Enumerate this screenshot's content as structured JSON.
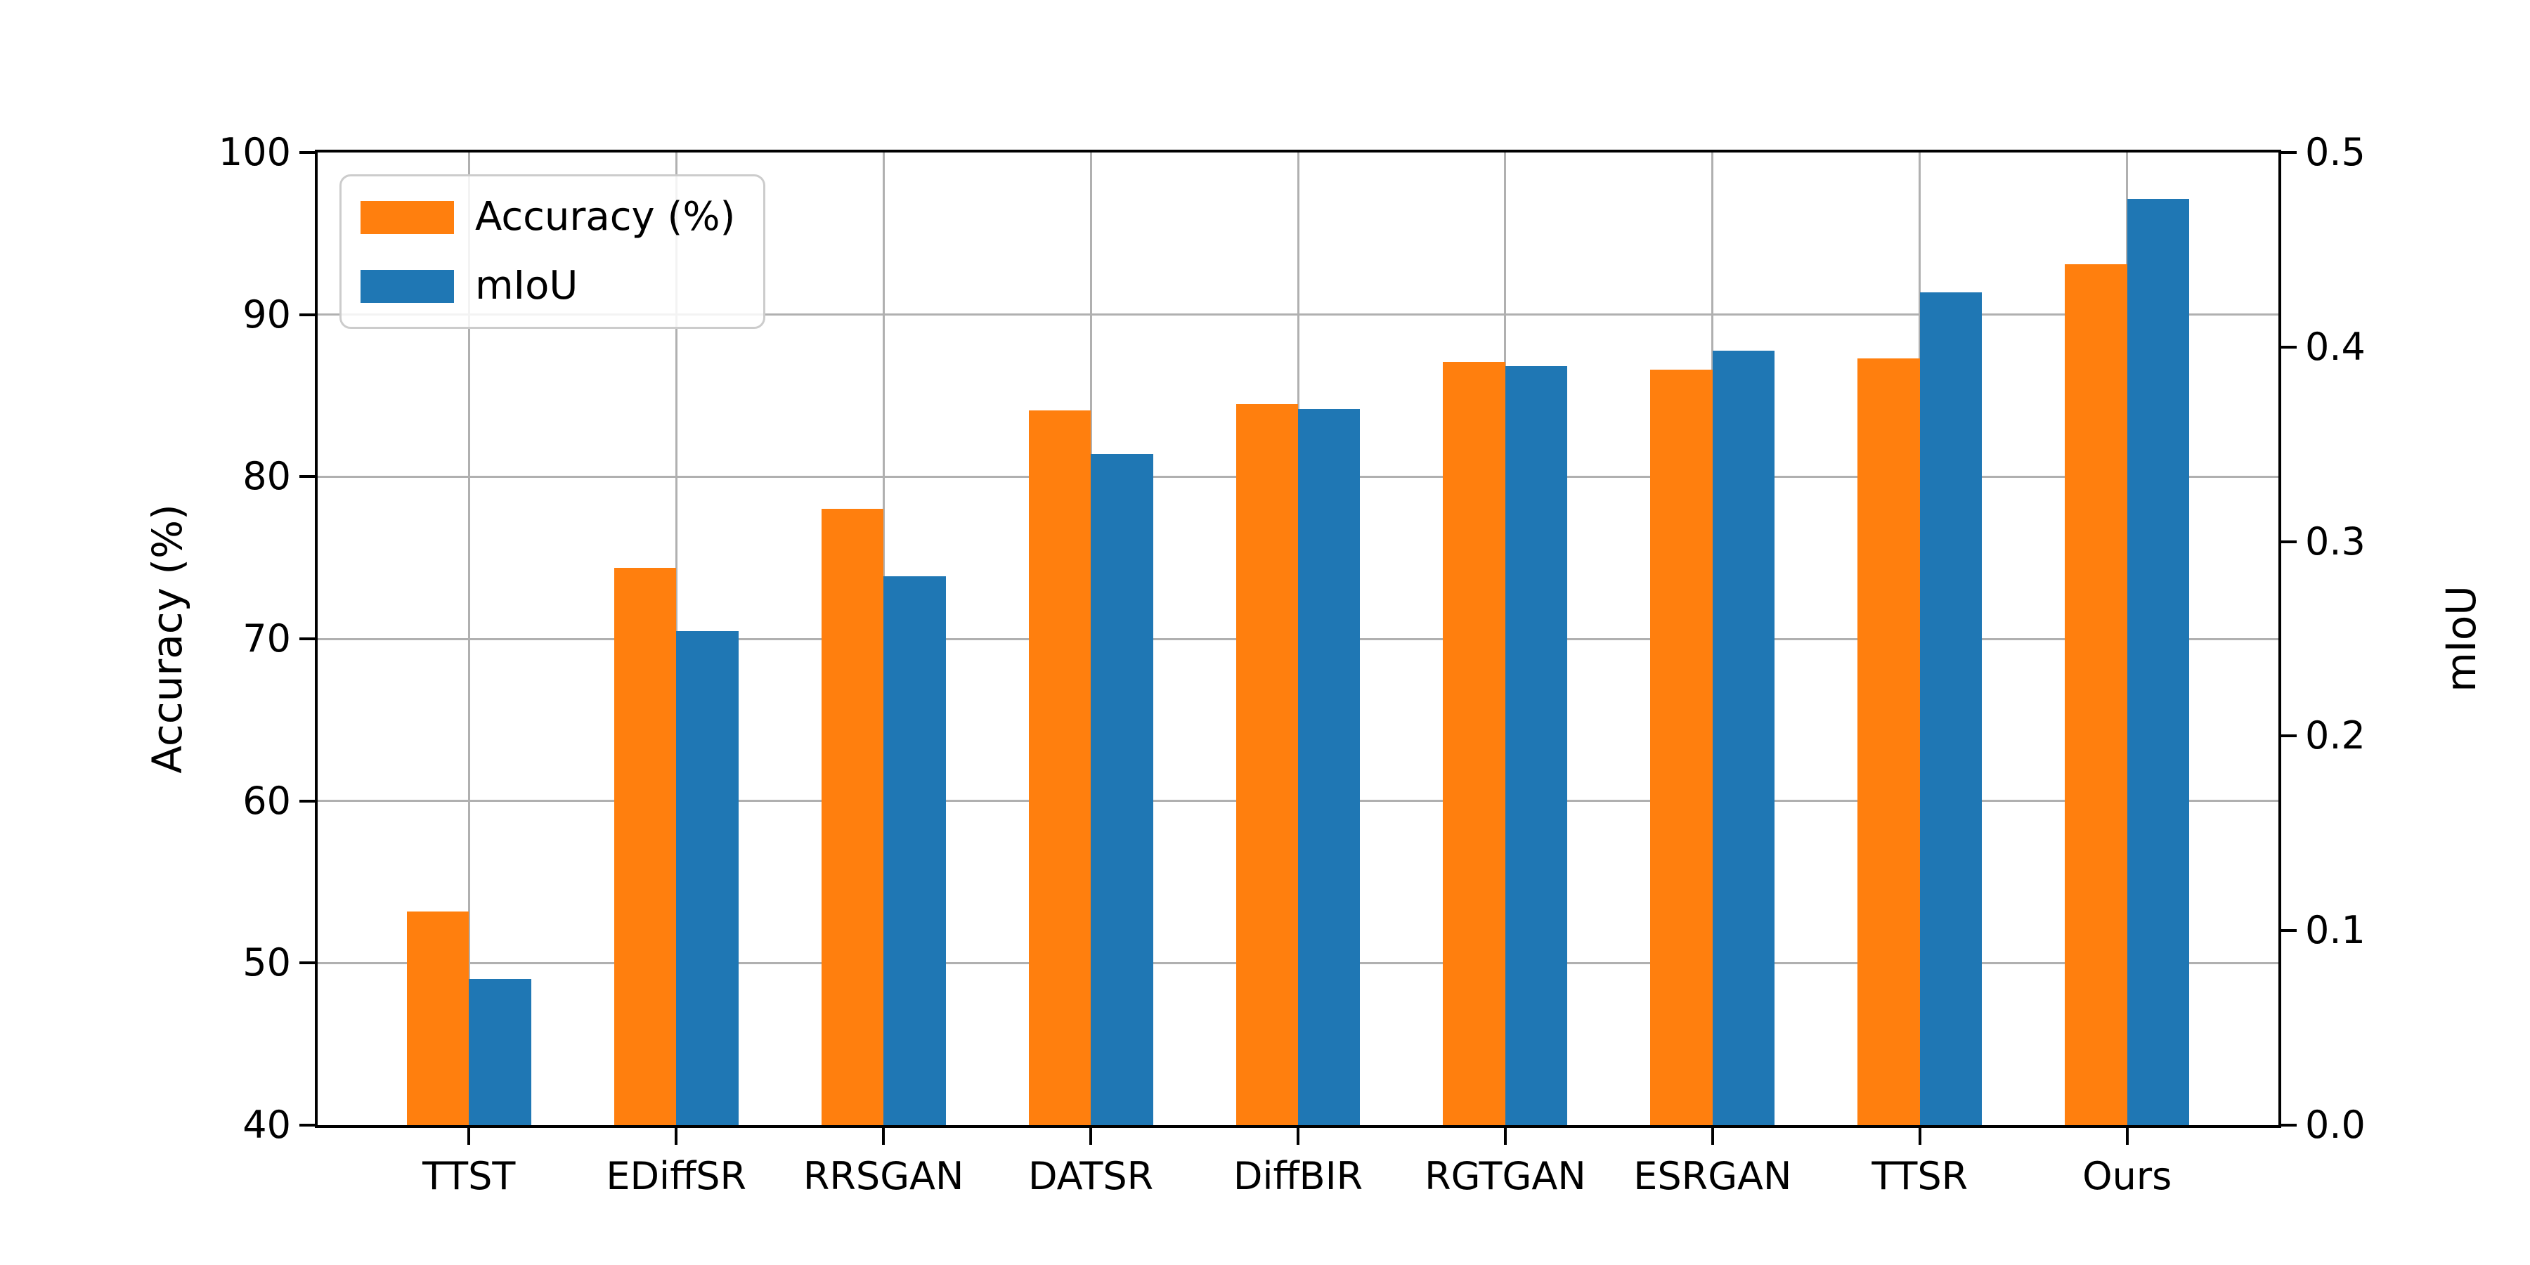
{
  "chart_data": {
    "type": "bar",
    "title": "",
    "categories": [
      "TTST",
      "EDiffSR",
      "RRSGAN",
      "DATSR",
      "DiffBIR",
      "RGTGAN",
      "ESRGAN",
      "TTSR",
      "Ours"
    ],
    "series": [
      {
        "name": "Accuracy (%)",
        "axis": "left",
        "color": "#ff7f0e",
        "values": [
          53.2,
          74.4,
          78.0,
          84.1,
          84.5,
          87.1,
          86.6,
          87.3,
          93.1
        ]
      },
      {
        "name": "mIoU",
        "axis": "right",
        "color": "#1f77b4",
        "values": [
          0.075,
          0.254,
          0.282,
          0.345,
          0.368,
          0.39,
          0.398,
          0.428,
          0.476
        ]
      }
    ],
    "left_axis": {
      "label": "Accuracy (%)",
      "min": 40,
      "max": 100,
      "ticks": [
        "40",
        "50",
        "60",
        "70",
        "80",
        "90",
        "100"
      ]
    },
    "right_axis": {
      "label": "mIoU",
      "min": 0.0,
      "max": 0.5,
      "ticks": [
        "0.0",
        "0.1",
        "0.2",
        "0.3",
        "0.4",
        "0.5"
      ]
    },
    "legend": {
      "position": "upper-left",
      "items": [
        {
          "label": "Accuracy (%)",
          "color": "#ff7f0e"
        },
        {
          "label": "mIoU",
          "color": "#1f77b4"
        }
      ]
    },
    "grid": true,
    "bar_width_units": 0.3,
    "x_margin_units": 0.73
  },
  "colors": {
    "accuracy": "#ff7f0e",
    "miou": "#1f77b4",
    "grid": "#b0b0b0",
    "spine": "#000000",
    "legend_edge": "#cccccc",
    "background": "#ffffff"
  }
}
